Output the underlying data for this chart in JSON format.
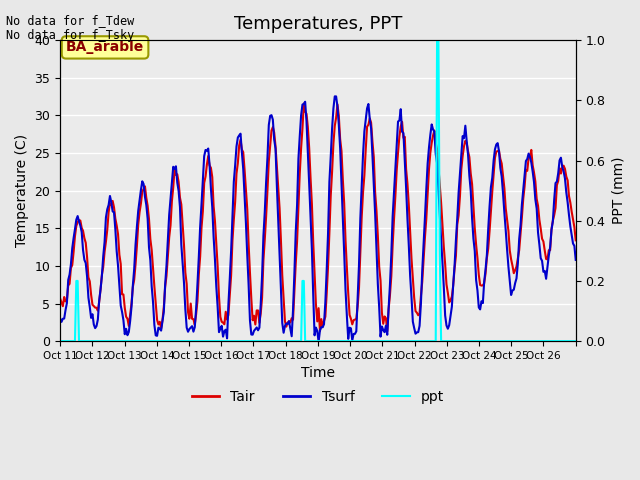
{
  "title": "Temperatures, PPT",
  "xlabel": "Time",
  "ylabel_left": "Temperature (C)",
  "ylabel_right": "PPT (mm)",
  "text_top_left": "No data for f_Tdew\nNo data for f_Tsky",
  "box_label": "BA_arable",
  "ylim_left": [
    0,
    40
  ],
  "ylim_right": [
    0.0,
    1.0
  ],
  "xtick_labels": [
    "Oct 11",
    "Oct 12",
    "Oct 13",
    "Oct 14",
    "Oct 15",
    "Oct 16",
    "Oct 17",
    "Oct 18",
    "Oct 19",
    "Oct 20",
    "Oct 21",
    "Oct 22",
    "Oct 23",
    "Oct 24",
    "Oct 25",
    "Oct 26",
    ""
  ],
  "tair_color": "#dd0000",
  "tsurf_color": "#0000cc",
  "ppt_color": "#00ffff",
  "bg_color": "#e8e8e8",
  "plot_bg_color": "#ebebeb",
  "grid_color": "#ffffff"
}
